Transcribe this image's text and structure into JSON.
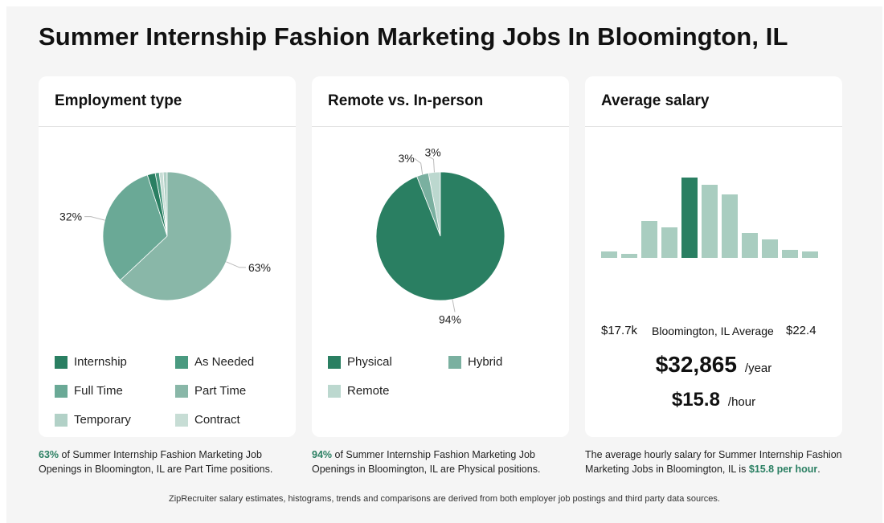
{
  "page": {
    "title": "Summer Internship Fashion Marketing Jobs In Bloomington, IL",
    "footer": "ZipRecruiter salary estimates, histograms, trends and comparisons are derived from both employer job postings and third party data sources."
  },
  "employment": {
    "title": "Employment type",
    "caption_highlight": "63%",
    "caption_rest": " of Summer Internship Fashion Marketing Job Openings in Bloomington, IL are Part Time positions.",
    "legend": [
      "Internship",
      "As Needed",
      "Full Time",
      "Part Time",
      "Temporary",
      "Contract"
    ],
    "colors": [
      "#2a7f62",
      "#4a9a80",
      "#6aa996",
      "#89b7a8",
      "#b2d1c7",
      "#c7ddd5"
    ]
  },
  "remote": {
    "title": "Remote vs. In-person",
    "caption_highlight": "94%",
    "caption_rest": " of Summer Internship Fashion Marketing Job Openings in Bloomington, IL are Physical positions.",
    "legend": [
      "Physical",
      "Hybrid",
      "Remote"
    ],
    "colors": [
      "#2a7f62",
      "#7ab0a0",
      "#bcd8cf"
    ]
  },
  "salary": {
    "title": "Average salary",
    "min_label": "$17.7k",
    "avg_label": "Bloomington, IL Average",
    "max_label": "$22.4",
    "yearly": "$32,865",
    "yearly_unit": "/year",
    "hourly": "$15.8",
    "hourly_unit": "/hour",
    "caption_pre": "The average hourly salary for Summer Internship Fashion Marketing Jobs in Bloomington, IL is ",
    "caption_highlight": "$15.8 per hour",
    "caption_post": ".",
    "bar_color": "#a9cdc0",
    "highlight_color": "#2a7f62"
  },
  "chart_data": [
    {
      "type": "pie",
      "title": "Employment type",
      "labels": [
        "Internship",
        "As Needed",
        "Full Time",
        "Part Time",
        "Temporary",
        "Contract"
      ],
      "values": [
        2,
        1,
        32,
        63,
        1,
        1
      ],
      "data_labels": [
        "",
        "",
        "32%",
        "63%",
        "",
        ""
      ]
    },
    {
      "type": "pie",
      "title": "Remote vs. In-person",
      "labels": [
        "Physical",
        "Hybrid",
        "Remote"
      ],
      "values": [
        94,
        3,
        3
      ],
      "data_labels": [
        "94%",
        "3%",
        "3%"
      ]
    },
    {
      "type": "bar",
      "title": "Average salary",
      "categories": [
        "1",
        "2",
        "3",
        "4",
        "5",
        "6",
        "7",
        "8",
        "9",
        "10",
        "11"
      ],
      "values": [
        8,
        5,
        46,
        38,
        100,
        91,
        79,
        31,
        23,
        10,
        8
      ],
      "highlight_index": 4,
      "xlabel": "",
      "ylabel": ""
    }
  ]
}
